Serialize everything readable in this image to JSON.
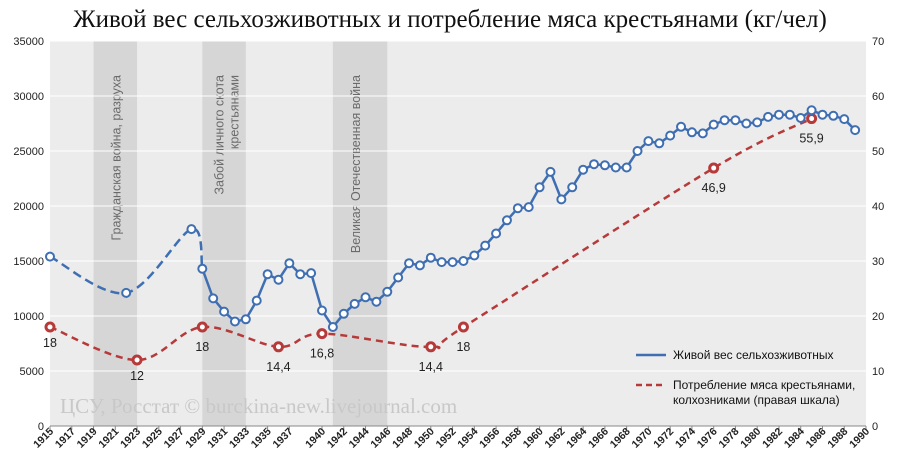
{
  "title": "Живой вес сельхозживотных и потребление мяса крестьянами (кг/чел)",
  "watermark": "ЦСУ, Росстат © burckina-new.livejournal.com",
  "colors": {
    "livestock": "#3f6fb2",
    "meat": "#b73a3a",
    "band": "#d6d6d6",
    "plot_bg": "#ececec",
    "grid": "#ffffff"
  },
  "chart_data": {
    "type": "line",
    "title": "Живой вес сельхозживотных и потребление мяса крестьянами (кг/чел)",
    "xlim": [
      1915,
      1990
    ],
    "ylim_left": [
      0,
      35000
    ],
    "ylim_right": [
      0,
      70
    ],
    "y_ticks_left": [
      "0",
      "5000",
      "10000",
      "15000",
      "20000",
      "25000",
      "30000",
      "35000"
    ],
    "y_ticks_right": [
      "0",
      "10",
      "20",
      "30",
      "40",
      "50",
      "60",
      "70"
    ],
    "x_ticks": [
      "1915",
      "1917",
      "1919",
      "1921",
      "1923",
      "1925",
      "1927",
      "1929",
      "1931",
      "1933",
      "1935",
      "1937",
      "1940",
      "1942",
      "1944",
      "1946",
      "1948",
      "1950",
      "1952",
      "1954",
      "1956",
      "1958",
      "1960",
      "1962",
      "1964",
      "1966",
      "1968",
      "1970",
      "1972",
      "1974",
      "1976",
      "1978",
      "1980",
      "1982",
      "1984",
      "1986",
      "1988",
      "1990"
    ],
    "bands": [
      {
        "from": 1919,
        "to": 1923,
        "label": "Гражданская война, разруха"
      },
      {
        "from": 1929,
        "to": 1933,
        "label": "Забой личного скота крестьянами"
      },
      {
        "from": 1941,
        "to": 1946,
        "label": "Великая Отечественная война"
      }
    ],
    "series": [
      {
        "name": "Живой вес сельхозживотных",
        "axis": "left",
        "points": [
          [
            1915,
            15400
          ],
          [
            1922,
            12100
          ],
          [
            1928,
            17900
          ],
          [
            1929,
            14300
          ],
          [
            1930,
            11600
          ],
          [
            1931,
            10400
          ],
          [
            1932,
            9500
          ],
          [
            1933,
            9700
          ],
          [
            1934,
            11400
          ],
          [
            1935,
            13800
          ],
          [
            1936,
            13300
          ],
          [
            1937,
            14800
          ],
          [
            1938,
            13800
          ],
          [
            1939,
            13900
          ],
          [
            1940,
            10500
          ],
          [
            1941,
            9000
          ],
          [
            1942,
            10200
          ],
          [
            1943,
            11100
          ],
          [
            1944,
            11700
          ],
          [
            1945,
            11300
          ],
          [
            1946,
            12200
          ],
          [
            1947,
            13500
          ],
          [
            1948,
            14800
          ],
          [
            1949,
            14600
          ],
          [
            1950,
            15300
          ],
          [
            1951,
            14900
          ],
          [
            1952,
            14900
          ],
          [
            1953,
            15000
          ],
          [
            1954,
            15500
          ],
          [
            1955,
            16400
          ],
          [
            1956,
            17500
          ],
          [
            1957,
            18700
          ],
          [
            1958,
            19800
          ],
          [
            1959,
            19900
          ],
          [
            1960,
            21700
          ],
          [
            1961,
            23100
          ],
          [
            1962,
            20600
          ],
          [
            1963,
            21700
          ],
          [
            1964,
            23300
          ],
          [
            1965,
            23800
          ],
          [
            1966,
            23700
          ],
          [
            1967,
            23500
          ],
          [
            1968,
            23500
          ],
          [
            1969,
            25000
          ],
          [
            1970,
            25900
          ],
          [
            1971,
            25700
          ],
          [
            1972,
            26400
          ],
          [
            1973,
            27200
          ],
          [
            1974,
            26700
          ],
          [
            1975,
            26600
          ],
          [
            1976,
            27400
          ],
          [
            1977,
            27800
          ],
          [
            1978,
            27800
          ],
          [
            1979,
            27500
          ],
          [
            1980,
            27600
          ],
          [
            1981,
            28100
          ],
          [
            1982,
            28300
          ],
          [
            1983,
            28300
          ],
          [
            1984,
            28000
          ],
          [
            1985,
            28700
          ],
          [
            1986,
            28300
          ],
          [
            1987,
            28200
          ],
          [
            1988,
            27900
          ],
          [
            1989,
            26900
          ]
        ],
        "dashed_until": 1929
      },
      {
        "name": "Потребление мяса крестьянами, колхозниками (правая шкала)",
        "axis": "right",
        "points": [
          [
            1915,
            18
          ],
          [
            1923,
            12
          ],
          [
            1929,
            18
          ],
          [
            1936,
            14.4
          ],
          [
            1940,
            16.8
          ],
          [
            1950,
            14.4
          ],
          [
            1953,
            18
          ],
          [
            1976,
            46.9
          ],
          [
            1985,
            55.9
          ]
        ],
        "point_labels": [
          "18",
          "12",
          "18",
          "14,4",
          "16,8",
          "14,4",
          "18",
          "46,9",
          "55,9"
        ]
      }
    ]
  }
}
